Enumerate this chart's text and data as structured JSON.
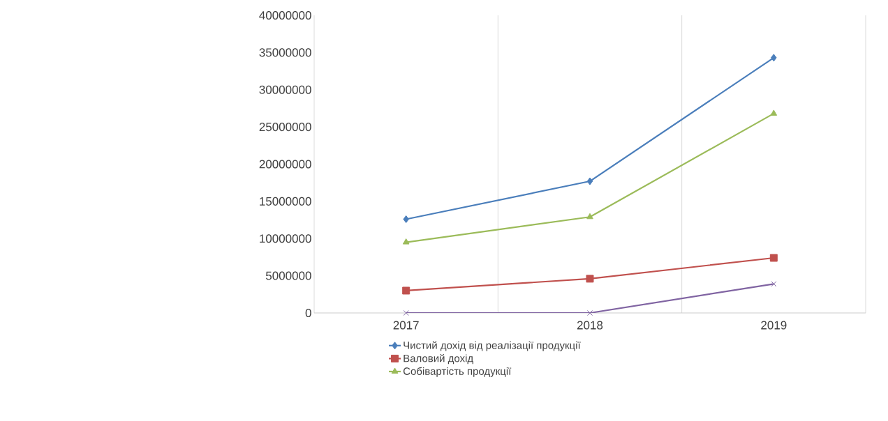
{
  "chart_data": {
    "type": "line",
    "categories": [
      "2017",
      "2018",
      "2019"
    ],
    "series": [
      {
        "name": "Чистий дохід від реалізації продукції",
        "color": "#4a7ebb",
        "marker": "diamond",
        "values": [
          12600000,
          17700000,
          34300000
        ]
      },
      {
        "name": "Валовий дохід",
        "color": "#c0504d",
        "marker": "square",
        "values": [
          3000000,
          4600000,
          7400000
        ]
      },
      {
        "name": "Собівартість продукції",
        "color": "#9bbb59",
        "marker": "triangle",
        "values": [
          9500000,
          12900000,
          26800000
        ]
      },
      {
        "color": "#8064a2",
        "marker": "cross",
        "values": [
          0,
          0,
          3900000
        ]
      }
    ],
    "ylim": [
      0,
      40000000
    ],
    "yticks": [
      0,
      5000000,
      10000000,
      15000000,
      20000000,
      25000000,
      30000000,
      35000000,
      40000000
    ],
    "grid": "x",
    "legend": "bottom"
  }
}
